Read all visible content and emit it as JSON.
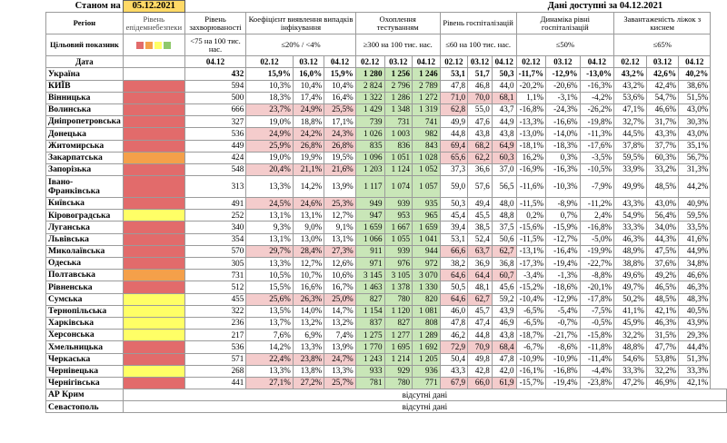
{
  "header": {
    "as_of_label": "Станом на",
    "as_of_date": "05.12.2021",
    "data_available": "Дані доступні за 04.12.2021"
  },
  "columns": {
    "region": "Регіон",
    "epi_level": "Рівень епідемнебезпеки",
    "incidence": "Рівень захворюваності",
    "detection": "Коефіцієнт виявлення випадків інфікування",
    "testing": "Охоплення тестуванням",
    "hosp": "Рівень госпіталізацій",
    "dynamics": "Динаміка рівні госпіталізацій",
    "beds": "Завантаженість ліжок з киснем"
  },
  "targets": {
    "label": "Цільовий показник",
    "incidence": "<75 на 100 тис. нас.",
    "detection": "≤20% / <4%",
    "testing": "≥300 на 100 тис. нас.",
    "hosp": "≤60 на 100 тис. нас.",
    "dynamics": "≤50%",
    "beds": "≤65%"
  },
  "legend_colors": [
    "#e26b6b",
    "#f4a04a",
    "#ffff66",
    "#8fc96b"
  ],
  "dates": {
    "label": "Дата",
    "single": "04.12",
    "triple": [
      "02.12",
      "03.12",
      "04.12"
    ]
  },
  "ukraine": {
    "name": "Україна",
    "incidence": "432",
    "detection": [
      "15,9%",
      "16,0%",
      "15,9%"
    ],
    "testing": [
      "1 280",
      "1 256",
      "1 246"
    ],
    "hosp": [
      "53,1",
      "51,7",
      "50,3"
    ],
    "dynamics": [
      "-11,7%",
      "-12,9%",
      "-13,0%"
    ],
    "beds": [
      "43,2%",
      "42,6%",
      "40,2%"
    ]
  },
  "regions": [
    {
      "name": "КИЇВ",
      "level": "r",
      "inc": "594",
      "det": [
        "10,3%",
        "10,4%",
        "10,4%"
      ],
      "detR": [
        0,
        0,
        0
      ],
      "tst": [
        "2 824",
        "2 796",
        "2 789"
      ],
      "tstG": [
        1,
        1,
        1
      ],
      "hsp": [
        "47,8",
        "46,8",
        "44,0"
      ],
      "hspR": [
        0,
        0,
        0
      ],
      "dyn": [
        "-20,2%",
        "-20,6%",
        "-16,3%"
      ],
      "bed": [
        "43,2%",
        "42,4%",
        "38,6%"
      ]
    },
    {
      "name": "Вінницька",
      "level": "r",
      "inc": "500",
      "det": [
        "18,3%",
        "17,4%",
        "16,4%"
      ],
      "detR": [
        0,
        0,
        0
      ],
      "tst": [
        "1 322",
        "1 286",
        "1 272"
      ],
      "tstG": [
        1,
        1,
        1
      ],
      "hsp": [
        "71,0",
        "70,0",
        "68,1"
      ],
      "hspR": [
        1,
        1,
        1
      ],
      "dyn": [
        "1,1%",
        "-3,1%",
        "-4,2%"
      ],
      "bed": [
        "53,6%",
        "54,7%",
        "51,5%"
      ]
    },
    {
      "name": "Волинська",
      "level": "r",
      "inc": "666",
      "det": [
        "23,7%",
        "24,9%",
        "25,5%"
      ],
      "detR": [
        1,
        1,
        1
      ],
      "tst": [
        "1 429",
        "1 348",
        "1 319"
      ],
      "tstG": [
        1,
        1,
        1
      ],
      "hsp": [
        "62,8",
        "55,0",
        "43,7"
      ],
      "hspR": [
        1,
        0,
        0
      ],
      "dyn": [
        "-16,8%",
        "-24,3%",
        "-26,2%"
      ],
      "bed": [
        "47,1%",
        "46,6%",
        "43,0%"
      ]
    },
    {
      "name": "Дніпропетровська",
      "level": "r",
      "inc": "327",
      "det": [
        "19,0%",
        "18,8%",
        "17,1%"
      ],
      "detR": [
        0,
        0,
        0
      ],
      "tst": [
        "739",
        "731",
        "741"
      ],
      "tstG": [
        1,
        1,
        1
      ],
      "hsp": [
        "49,9",
        "47,6",
        "44,9"
      ],
      "hspR": [
        0,
        0,
        0
      ],
      "dyn": [
        "-13,3%",
        "-16,6%",
        "-19,8%"
      ],
      "bed": [
        "32,7%",
        "31,7%",
        "30,3%"
      ]
    },
    {
      "name": "Донецька",
      "level": "r",
      "inc": "536",
      "det": [
        "24,9%",
        "24,2%",
        "24,3%"
      ],
      "detR": [
        1,
        1,
        1
      ],
      "tst": [
        "1 026",
        "1 003",
        "982"
      ],
      "tstG": [
        1,
        1,
        1
      ],
      "hsp": [
        "44,8",
        "43,8",
        "43,8"
      ],
      "hspR": [
        0,
        0,
        0
      ],
      "dyn": [
        "-13,0%",
        "-14,0%",
        "-11,3%"
      ],
      "bed": [
        "44,5%",
        "43,3%",
        "43,0%"
      ]
    },
    {
      "name": "Житомирська",
      "level": "r",
      "inc": "449",
      "det": [
        "25,9%",
        "26,8%",
        "26,8%"
      ],
      "detR": [
        1,
        1,
        1
      ],
      "tst": [
        "835",
        "836",
        "843"
      ],
      "tstG": [
        1,
        1,
        1
      ],
      "hsp": [
        "69,4",
        "68,2",
        "64,9"
      ],
      "hspR": [
        1,
        1,
        1
      ],
      "dyn": [
        "-18,1%",
        "-18,3%",
        "-17,6%"
      ],
      "bed": [
        "37,8%",
        "37,7%",
        "35,1%"
      ]
    },
    {
      "name": "Закарпатська",
      "level": "o",
      "inc": "424",
      "det": [
        "19,0%",
        "19,9%",
        "19,5%"
      ],
      "detR": [
        0,
        0,
        0
      ],
      "tst": [
        "1 096",
        "1 051",
        "1 028"
      ],
      "tstG": [
        1,
        1,
        1
      ],
      "hsp": [
        "65,6",
        "62,2",
        "60,3"
      ],
      "hspR": [
        1,
        1,
        1
      ],
      "dyn": [
        "16,2%",
        "0,3%",
        "-3,5%"
      ],
      "bed": [
        "59,5%",
        "60,3%",
        "56,7%"
      ]
    },
    {
      "name": "Запорізька",
      "level": "r",
      "inc": "548",
      "det": [
        "20,4%",
        "21,1%",
        "21,6%"
      ],
      "detR": [
        1,
        1,
        1
      ],
      "tst": [
        "1 203",
        "1 124",
        "1 052"
      ],
      "tstG": [
        1,
        1,
        1
      ],
      "hsp": [
        "37,3",
        "36,6",
        "37,0"
      ],
      "hspR": [
        0,
        0,
        0
      ],
      "dyn": [
        "-16,9%",
        "-16,3%",
        "-10,5%"
      ],
      "bed": [
        "33,9%",
        "33,2%",
        "31,3%"
      ]
    },
    {
      "name": "Івано-Франківська",
      "level": "r",
      "tall": 1,
      "inc": "313",
      "det": [
        "13,3%",
        "14,2%",
        "13,9%"
      ],
      "detR": [
        0,
        0,
        0
      ],
      "tst": [
        "1 117",
        "1 074",
        "1 057"
      ],
      "tstG": [
        1,
        1,
        1
      ],
      "hsp": [
        "59,0",
        "57,6",
        "56,5"
      ],
      "hspR": [
        0,
        0,
        0
      ],
      "dyn": [
        "-11,6%",
        "-10,3%",
        "-7,9%"
      ],
      "bed": [
        "49,9%",
        "48,5%",
        "44,2%"
      ]
    },
    {
      "name": "Київська",
      "level": "r",
      "inc": "491",
      "det": [
        "24,5%",
        "24,6%",
        "25,3%"
      ],
      "detR": [
        1,
        1,
        1
      ],
      "tst": [
        "949",
        "939",
        "935"
      ],
      "tstG": [
        1,
        1,
        1
      ],
      "hsp": [
        "50,3",
        "49,4",
        "48,0"
      ],
      "hspR": [
        0,
        0,
        0
      ],
      "dyn": [
        "-11,5%",
        "-8,9%",
        "-11,2%"
      ],
      "bed": [
        "43,3%",
        "43,0%",
        "40,9%"
      ]
    },
    {
      "name": "Кіровоградська",
      "level": "y",
      "inc": "252",
      "det": [
        "13,1%",
        "13,1%",
        "12,7%"
      ],
      "detR": [
        0,
        0,
        0
      ],
      "tst": [
        "947",
        "953",
        "965"
      ],
      "tstG": [
        1,
        1,
        1
      ],
      "hsp": [
        "45,4",
        "45,5",
        "48,8"
      ],
      "hspR": [
        0,
        0,
        0
      ],
      "dyn": [
        "0,2%",
        "0,7%",
        "2,4%"
      ],
      "bed": [
        "54,9%",
        "56,4%",
        "59,5%"
      ]
    },
    {
      "name": "Луганська",
      "level": "r",
      "inc": "340",
      "det": [
        "9,3%",
        "9,0%",
        "9,1%"
      ],
      "detR": [
        0,
        0,
        0
      ],
      "tst": [
        "1 659",
        "1 667",
        "1 659"
      ],
      "tstG": [
        1,
        1,
        1
      ],
      "hsp": [
        "39,4",
        "38,5",
        "37,5"
      ],
      "hspR": [
        0,
        0,
        0
      ],
      "dyn": [
        "-15,6%",
        "-15,9%",
        "-16,8%"
      ],
      "bed": [
        "33,3%",
        "34,0%",
        "33,5%"
      ]
    },
    {
      "name": "Львівська",
      "level": "r",
      "inc": "354",
      "det": [
        "13,1%",
        "13,0%",
        "13,1%"
      ],
      "detR": [
        0,
        0,
        0
      ],
      "tst": [
        "1 066",
        "1 055",
        "1 041"
      ],
      "tstG": [
        1,
        1,
        1
      ],
      "hsp": [
        "53,1",
        "52,4",
        "50,6"
      ],
      "hspR": [
        0,
        0,
        0
      ],
      "dyn": [
        "-11,5%",
        "-12,7%",
        "-5,0%"
      ],
      "bed": [
        "46,3%",
        "44,3%",
        "41,6%"
      ]
    },
    {
      "name": "Миколаївська",
      "level": "r",
      "inc": "570",
      "det": [
        "29,7%",
        "28,4%",
        "27,3%"
      ],
      "detR": [
        1,
        1,
        1
      ],
      "tst": [
        "911",
        "939",
        "944"
      ],
      "tstG": [
        1,
        1,
        1
      ],
      "hsp": [
        "66,6",
        "63,7",
        "62,7"
      ],
      "hspR": [
        1,
        1,
        1
      ],
      "dyn": [
        "-13,1%",
        "-16,4%",
        "-19,9%"
      ],
      "bed": [
        "48,9%",
        "47,5%",
        "44,9%"
      ]
    },
    {
      "name": "Одеська",
      "level": "r",
      "inc": "305",
      "det": [
        "13,3%",
        "12,7%",
        "12,6%"
      ],
      "detR": [
        0,
        0,
        0
      ],
      "tst": [
        "971",
        "976",
        "972"
      ],
      "tstG": [
        1,
        1,
        1
      ],
      "hsp": [
        "38,2",
        "36,9",
        "36,8"
      ],
      "hspR": [
        0,
        0,
        0
      ],
      "dyn": [
        "-17,3%",
        "-19,4%",
        "-22,7%"
      ],
      "bed": [
        "38,8%",
        "37,6%",
        "34,8%"
      ]
    },
    {
      "name": "Полтавська",
      "level": "o",
      "inc": "731",
      "det": [
        "10,5%",
        "10,7%",
        "10,6%"
      ],
      "detR": [
        0,
        0,
        0
      ],
      "tst": [
        "3 145",
        "3 105",
        "3 070"
      ],
      "tstG": [
        1,
        1,
        1
      ],
      "hsp": [
        "64,6",
        "64,4",
        "60,7"
      ],
      "hspR": [
        1,
        1,
        1
      ],
      "dyn": [
        "-3,4%",
        "-1,3%",
        "-8,8%"
      ],
      "bed": [
        "49,6%",
        "49,2%",
        "46,6%"
      ]
    },
    {
      "name": "Рівненська",
      "level": "r",
      "inc": "512",
      "det": [
        "15,5%",
        "16,6%",
        "16,7%"
      ],
      "detR": [
        0,
        0,
        0
      ],
      "tst": [
        "1 463",
        "1 378",
        "1 330"
      ],
      "tstG": [
        1,
        1,
        1
      ],
      "hsp": [
        "50,5",
        "48,1",
        "45,6"
      ],
      "hspR": [
        0,
        0,
        0
      ],
      "dyn": [
        "-15,2%",
        "-18,6%",
        "-20,1%"
      ],
      "bed": [
        "49,7%",
        "46,5%",
        "46,3%"
      ]
    },
    {
      "name": "Сумська",
      "level": "y",
      "inc": "455",
      "det": [
        "25,6%",
        "26,3%",
        "25,0%"
      ],
      "detR": [
        1,
        1,
        1
      ],
      "tst": [
        "827",
        "780",
        "820"
      ],
      "tstG": [
        1,
        1,
        1
      ],
      "hsp": [
        "64,6",
        "62,7",
        "59,2"
      ],
      "hspR": [
        1,
        1,
        0
      ],
      "dyn": [
        "-10,4%",
        "-12,9%",
        "-17,8%"
      ],
      "bed": [
        "50,2%",
        "48,5%",
        "48,3%"
      ]
    },
    {
      "name": "Тернопільська",
      "level": "y",
      "inc": "322",
      "det": [
        "13,5%",
        "14,0%",
        "14,7%"
      ],
      "detR": [
        0,
        0,
        0
      ],
      "tst": [
        "1 154",
        "1 120",
        "1 081"
      ],
      "tstG": [
        1,
        1,
        1
      ],
      "hsp": [
        "46,0",
        "45,7",
        "43,9"
      ],
      "hspR": [
        0,
        0,
        0
      ],
      "dyn": [
        "-6,5%",
        "-5,4%",
        "-7,5%"
      ],
      "bed": [
        "41,1%",
        "42,1%",
        "40,5%"
      ]
    },
    {
      "name": "Харківська",
      "level": "y",
      "inc": "236",
      "det": [
        "13,7%",
        "13,2%",
        "13,2%"
      ],
      "detR": [
        0,
        0,
        0
      ],
      "tst": [
        "837",
        "827",
        "808"
      ],
      "tstG": [
        1,
        1,
        1
      ],
      "hsp": [
        "47,8",
        "47,4",
        "46,9"
      ],
      "hspR": [
        0,
        0,
        0
      ],
      "dyn": [
        "-6,5%",
        "-0,7%",
        "-0,5%"
      ],
      "bed": [
        "45,9%",
        "46,3%",
        "43,9%"
      ]
    },
    {
      "name": "Херсонська",
      "level": "y",
      "inc": "217",
      "det": [
        "7,6%",
        "6,9%",
        "7,4%"
      ],
      "detR": [
        0,
        0,
        0
      ],
      "tst": [
        "1 275",
        "1 277",
        "1 289"
      ],
      "tstG": [
        1,
        1,
        1
      ],
      "hsp": [
        "46,2",
        "44,8",
        "43,8"
      ],
      "hspR": [
        0,
        0,
        0
      ],
      "dyn": [
        "-18,7%",
        "-21,7%",
        "-15,8%"
      ],
      "bed": [
        "32,2%",
        "31,5%",
        "29,3%"
      ]
    },
    {
      "name": "Хмельницька",
      "level": "r",
      "inc": "536",
      "det": [
        "14,2%",
        "13,3%",
        "13,9%"
      ],
      "detR": [
        0,
        0,
        0
      ],
      "tst": [
        "1 770",
        "1 695",
        "1 692"
      ],
      "tstG": [
        1,
        1,
        1
      ],
      "hsp": [
        "72,9",
        "70,9",
        "68,4"
      ],
      "hspR": [
        1,
        1,
        1
      ],
      "dyn": [
        "-6,7%",
        "-8,6%",
        "-11,8%"
      ],
      "bed": [
        "48,8%",
        "47,7%",
        "44,4%"
      ]
    },
    {
      "name": "Черкаська",
      "level": "r",
      "inc": "571",
      "det": [
        "22,4%",
        "23,8%",
        "24,7%"
      ],
      "detR": [
        1,
        1,
        1
      ],
      "tst": [
        "1 243",
        "1 214",
        "1 205"
      ],
      "tstG": [
        1,
        1,
        1
      ],
      "hsp": [
        "50,4",
        "49,8",
        "47,8"
      ],
      "hspR": [
        0,
        0,
        0
      ],
      "dyn": [
        "-10,9%",
        "-10,9%",
        "-11,4%"
      ],
      "bed": [
        "54,6%",
        "53,8%",
        "51,3%"
      ]
    },
    {
      "name": "Чернівецька",
      "level": "y",
      "inc": "268",
      "det": [
        "13,3%",
        "13,8%",
        "13,3%"
      ],
      "detR": [
        0,
        0,
        0
      ],
      "tst": [
        "933",
        "929",
        "936"
      ],
      "tstG": [
        1,
        1,
        1
      ],
      "hsp": [
        "43,3",
        "42,8",
        "42,0"
      ],
      "hspR": [
        0,
        0,
        0
      ],
      "dyn": [
        "-16,1%",
        "-16,8%",
        "-4,4%"
      ],
      "bed": [
        "33,3%",
        "32,2%",
        "33,3%"
      ]
    },
    {
      "name": "Чернігівська",
      "level": "r",
      "inc": "441",
      "det": [
        "27,1%",
        "27,2%",
        "25,7%"
      ],
      "detR": [
        1,
        1,
        1
      ],
      "tst": [
        "781",
        "780",
        "771"
      ],
      "tstG": [
        1,
        1,
        1
      ],
      "hsp": [
        "67,9",
        "66,0",
        "61,9"
      ],
      "hspR": [
        1,
        1,
        1
      ],
      "dyn": [
        "-15,7%",
        "-19,4%",
        "-23,8%"
      ],
      "bed": [
        "47,2%",
        "46,9%",
        "42,1%"
      ]
    }
  ],
  "missing": [
    {
      "name": "АР Крим",
      "note": "відсутні дані"
    },
    {
      "name": "Севастополь",
      "note": "відсутні дані"
    }
  ]
}
